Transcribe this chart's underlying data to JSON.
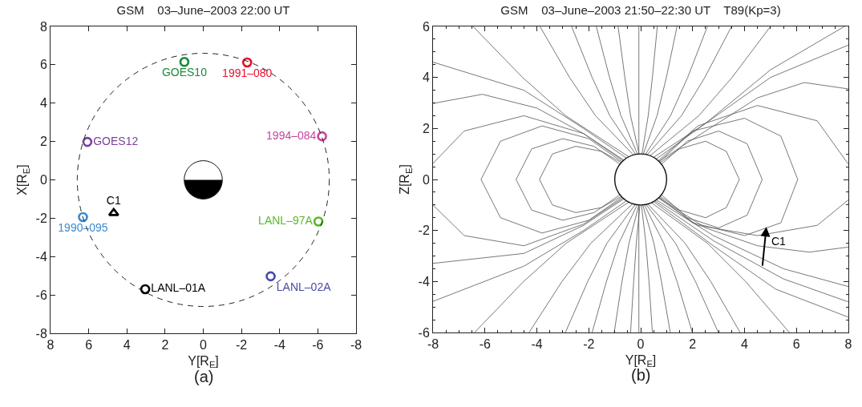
{
  "chart_data": [
    {
      "type": "scatter",
      "title": "GSM    03–June–2003 22:00 UT",
      "xlabel": "Y[R$_{E}$]",
      "ylabel": "X[R$_{E}$]",
      "annotations": [
        "(a)"
      ],
      "xlim": [
        8,
        -8
      ],
      "xticks": [
        8,
        6,
        4,
        2,
        0,
        -2,
        -4,
        -6,
        -8
      ],
      "ylim": [
        -8,
        8
      ],
      "yticks": [
        -8,
        -6,
        -4,
        -2,
        0,
        2,
        4,
        6,
        8
      ],
      "grid": false,
      "legend": false,
      "series": [
        {
          "name": "GOES10",
          "color": "#1a8a3a",
          "marker": "circle",
          "x": [
            0.99
          ],
          "values": [
            6.15
          ]
        },
        {
          "name": "1991–080",
          "color": "#e8112d",
          "marker": "circle",
          "x": [
            -2.3
          ],
          "values": [
            6.12
          ]
        },
        {
          "name": "GOES12",
          "color": "#7b3f9e",
          "marker": "circle",
          "x": [
            6.07
          ],
          "values": [
            1.98
          ]
        },
        {
          "name": "1994–084",
          "color": "#c8449a",
          "marker": "circle",
          "x": [
            -6.22
          ],
          "values": [
            2.27
          ]
        },
        {
          "name": "C1",
          "color": "#000000",
          "marker": "triangle",
          "x": [
            4.69
          ],
          "values": [
            -1.73
          ]
        },
        {
          "name": "1990–095",
          "color": "#3a8ad0",
          "marker": "circle",
          "x": [
            6.3
          ],
          "values": [
            -1.94
          ]
        },
        {
          "name": "LANL–97A",
          "color": "#5ab82a",
          "marker": "circle",
          "x": [
            -6.03
          ],
          "values": [
            -2.17
          ]
        },
        {
          "name": "LANL–01A",
          "color": "#000000",
          "marker": "circle",
          "x": [
            3.04
          ],
          "values": [
            -5.7
          ]
        },
        {
          "name": "LANL–02A",
          "color": "#4a4aa8",
          "marker": "circle",
          "x": [
            -3.53
          ],
          "values": [
            -5.03
          ]
        }
      ]
    },
    {
      "type": "line",
      "title": "GSM    03–June–2003 21:50–22:30 UT    T89(Kp=3)",
      "xlabel": "Y[R$_{E}$]",
      "ylabel": "Z[R$_{E}$]",
      "color": "#555555",
      "marker": "none",
      "line_style": "solid",
      "annotations": [
        "(b)",
        {
          "text": "C1",
          "x": 4.84,
          "y": -1.86
        }
      ],
      "xlim": [
        -8,
        8
      ],
      "xticks": [
        -8,
        -6,
        -4,
        -2,
        0,
        2,
        4,
        6,
        8
      ],
      "ylim": [
        -6,
        6
      ],
      "yticks": [
        -6,
        -4,
        -2,
        0,
        2,
        4,
        6
      ],
      "grid": false,
      "legend": false,
      "series": [
        {
          "x": [
            -0.46,
            -2.89,
            -4.55,
            -6.46
          ],
          "values": [
            0.89,
            2.5,
            4,
            6
          ]
        },
        {
          "x": [
            -0.28,
            -1.74,
            -2.74,
            -3.88
          ],
          "values": [
            0.96,
            2.5,
            4,
            6
          ]
        },
        {
          "x": [
            -0.19,
            -1.19,
            -1.87,
            -2.66
          ],
          "values": [
            0.98,
            2.5,
            4,
            6
          ]
        },
        {
          "x": [
            -0.12,
            -0.76,
            -1.2,
            -1.71
          ],
          "values": [
            0.99,
            2.5,
            4,
            6
          ]
        },
        {
          "x": [
            -0.06,
            -0.39,
            -0.61,
            -0.87
          ],
          "values": [
            1,
            2.5,
            4,
            6
          ]
        },
        {
          "x": [
            -0.07,
            -0.07
          ],
          "values": [
            1,
            6
          ]
        },
        {
          "x": [
            0.05,
            0.29,
            0.45,
            0.64
          ],
          "values": [
            1,
            2.5,
            4,
            6
          ]
        },
        {
          "x": [
            0.1,
            0.63,
            0.99,
            1.4
          ],
          "values": [
            1,
            2.5,
            4,
            6
          ]
        },
        {
          "x": [
            0.18,
            1.15,
            1.81,
            2.57
          ],
          "values": [
            0.98,
            2.5,
            4,
            6
          ]
        },
        {
          "x": [
            0.25,
            1.57,
            2.47,
            3.5
          ],
          "values": [
            0.97,
            2.5,
            4,
            6
          ]
        },
        {
          "x": [
            0.36,
            2.24,
            3.52,
            5.0
          ],
          "values": [
            0.93,
            2.5,
            4,
            6
          ]
        },
        {
          "x": [
            0.5,
            2.5,
            5,
            7.85
          ],
          "values": [
            0.87,
            2.2,
            4.3,
            6
          ]
        },
        {
          "x": [
            0.6,
            2.5,
            5,
            8
          ],
          "values": [
            0.8,
            2.2,
            4,
            5.27
          ]
        },
        {
          "x": [
            0.7,
            2.5,
            4.5,
            6.3,
            8
          ],
          "values": [
            0.71,
            1.9,
            3.2,
            3.8,
            3.55
          ]
        },
        {
          "x": [
            -0.55,
            -2.2,
            -4.5,
            -8
          ],
          "values": [
            0.84,
            2,
            3.5,
            4.6
          ]
        },
        {
          "x": [
            -0.65,
            -2.2,
            -4,
            -6.1,
            -8
          ],
          "values": [
            0.76,
            1.8,
            2.8,
            3.34,
            2.98
          ]
        },
        {
          "x": [
            -0.46,
            -2.87,
            -4.51,
            -6.4
          ],
          "values": [
            -0.89,
            -2.5,
            -4,
            -6
          ]
        },
        {
          "x": [
            -0.31,
            -1.92,
            -3.03,
            -4.3
          ],
          "values": [
            -0.95,
            -2.5,
            -4,
            -6
          ]
        },
        {
          "x": [
            -0.21,
            -1.3,
            -2.04,
            -2.9
          ],
          "values": [
            -0.98,
            -2.5,
            -4,
            -6
          ]
        },
        {
          "x": [
            -0.13,
            -0.84,
            -1.32,
            -1.87
          ],
          "values": [
            -0.99,
            -2.5,
            -4,
            -6
          ]
        },
        {
          "x": [
            -0.07,
            -0.45,
            -0.72,
            -1.02
          ],
          "values": [
            -1,
            -2.5,
            -4,
            -6
          ]
        },
        {
          "x": [
            -0.03,
            -0.17,
            -0.27,
            -0.39
          ],
          "values": [
            -1,
            -2.5,
            -4,
            -6
          ]
        },
        {
          "x": [
            -0.07,
            -0.07
          ],
          "values": [
            -1,
            -6
          ]
        },
        {
          "x": [
            0.03,
            0.2,
            0.32,
            0.45
          ],
          "values": [
            -1,
            -2.5,
            -4,
            -6
          ]
        },
        {
          "x": [
            0.08,
            0.51,
            0.8,
            1.14
          ],
          "values": [
            -1,
            -2.5,
            -4,
            -6
          ]
        },
        {
          "x": [
            0.14,
            0.89,
            1.4,
            1.99
          ],
          "values": [
            -0.99,
            -2.5,
            -4,
            -6
          ]
        },
        {
          "x": [
            0.21,
            1.34,
            2.11,
            2.99
          ],
          "values": [
            -0.98,
            -2.5,
            -4,
            -6
          ]
        },
        {
          "x": [
            0.27,
            1.71,
            2.7,
            3.83
          ],
          "values": [
            -0.96,
            -2.5,
            -4,
            -6
          ]
        },
        {
          "x": [
            0.41,
            2.57,
            4.04,
            5.73
          ],
          "values": [
            -0.91,
            -2.5,
            -4,
            -6
          ]
        },
        {
          "x": [
            0.5,
            2.8,
            5.2,
            8
          ],
          "values": [
            -0.87,
            -2.6,
            -4.3,
            -5.4
          ]
        },
        {
          "x": [
            0.55,
            2.8,
            5.5,
            8
          ],
          "values": [
            -0.84,
            -2.4,
            -3.9,
            -4.8
          ]
        },
        {
          "x": [
            0.6,
            2.8,
            5.5,
            8
          ],
          "values": [
            -0.8,
            -2.2,
            -3.5,
            -4.2
          ]
        },
        {
          "x": [
            0.7,
            2.5,
            4.5,
            6.5,
            8
          ],
          "values": [
            -0.71,
            -1.9,
            -2.6,
            -2.85,
            -2.65
          ]
        },
        {
          "x": [
            -0.65,
            -2.2,
            -4.5,
            -8
          ],
          "values": [
            -0.76,
            -1.8,
            -2.9,
            -3.29
          ]
        },
        {
          "x": [
            -0.55,
            -2.2,
            -4.5,
            -8
          ],
          "values": [
            -0.84,
            -2,
            -3.4,
            -4.78
          ]
        },
        {
          "x": [
            -0.75,
            -1.5,
            -2.5,
            -3.4,
            -3.9,
            -3.4,
            -2.5,
            -1.5,
            -0.75
          ],
          "values": [
            0.66,
            1.1,
            1.3,
            1,
            0,
            -1,
            -1.3,
            -1.1,
            -0.66
          ]
        },
        {
          "x": [
            -0.8,
            -1.8,
            -3,
            -4.2,
            -4.8,
            -4.2,
            -3,
            -1.8,
            -0.8
          ],
          "values": [
            0.6,
            1.3,
            1.6,
            1.2,
            0,
            -1.2,
            -1.6,
            -1.3,
            -0.6
          ]
        },
        {
          "x": [
            -0.72,
            -2,
            -3.8,
            -5.4,
            -6.15,
            -5.4,
            -3.8,
            -2,
            -0.72
          ],
          "values": [
            0.69,
            1.6,
            2.1,
            1.5,
            0,
            -1.5,
            -2.1,
            -1.6,
            -0.69
          ]
        },
        {
          "x": [
            -0.68,
            -2.2,
            -4.5,
            -6.8,
            -8
          ],
          "values": [
            0.73,
            1.8,
            2.5,
            1.9,
            0.63
          ]
        },
        {
          "x": [
            -8,
            -6.8,
            -4.5,
            -2.2,
            -0.68
          ],
          "values": [
            -1,
            -2.2,
            -2.6,
            -1.75,
            -0.73
          ]
        },
        {
          "x": [
            0.75,
            1.5,
            2.5,
            3.3,
            3.8,
            3.3,
            2.5,
            1.5,
            0.75
          ],
          "values": [
            0.66,
            1.2,
            1.5,
            1.1,
            0,
            -1.1,
            -1.5,
            -1.2,
            -0.66
          ]
        },
        {
          "x": [
            0.8,
            1.8,
            3,
            4.1,
            4.68,
            4.1,
            3,
            1.8,
            0.8
          ],
          "values": [
            0.6,
            1.5,
            1.9,
            1.4,
            0,
            -1.4,
            -1.9,
            -1.5,
            -0.6
          ]
        },
        {
          "x": [
            0.72,
            2,
            4,
            5.4,
            6.05,
            5.4,
            4,
            2,
            0.72
          ],
          "values": [
            0.69,
            1.9,
            2.4,
            1.7,
            0,
            -1.7,
            -2.2,
            -1.7,
            -0.69
          ]
        },
        {
          "x": [
            0.68,
            2.2,
            4.5,
            6.8,
            8
          ],
          "values": [
            0.73,
            2.1,
            2.9,
            2.3,
            0.6
          ]
        },
        {
          "x": [
            8,
            6.8,
            4.5,
            2.2,
            0.68
          ],
          "values": [
            -0.8,
            -1.8,
            -2.2,
            -1.8,
            -0.73
          ]
        }
      ]
    }
  ]
}
